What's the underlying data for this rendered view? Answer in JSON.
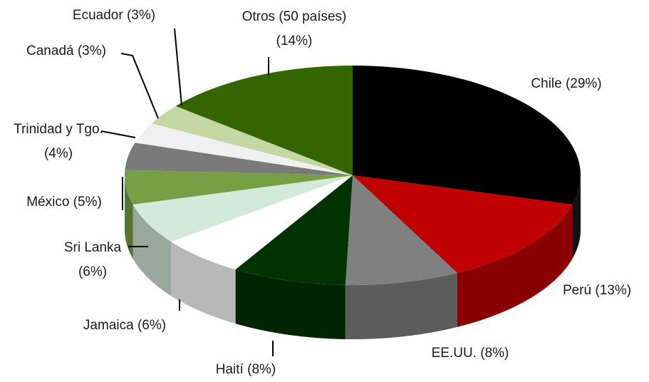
{
  "chart_data": {
    "type": "pie3d",
    "categories": [
      "Chile",
      "Perú",
      "EE.UU.",
      "Haití",
      "Jamaica",
      "Sri Lanka",
      "México",
      "Trinidad y Tgo.",
      "Canadá",
      "Ecuador",
      "Otros (50 países)"
    ],
    "values": [
      29,
      13,
      8,
      8,
      6,
      6,
      5,
      4,
      3,
      3,
      14
    ],
    "value_labels": [
      "(29%)",
      "(13%)",
      "(8%)",
      "(8%)",
      "(6%)",
      "(6%)",
      "(5%)",
      "(4%)",
      "(3%)",
      "(3%)",
      "(14%)"
    ],
    "colors": [
      "#000000",
      "#c00000",
      "#808080",
      "#003300",
      "#ffffff",
      "#d3ead9",
      "#77a045",
      "#7a7a7a",
      "#f0f0f0",
      "#c4d8a4",
      "#336600"
    ]
  }
}
